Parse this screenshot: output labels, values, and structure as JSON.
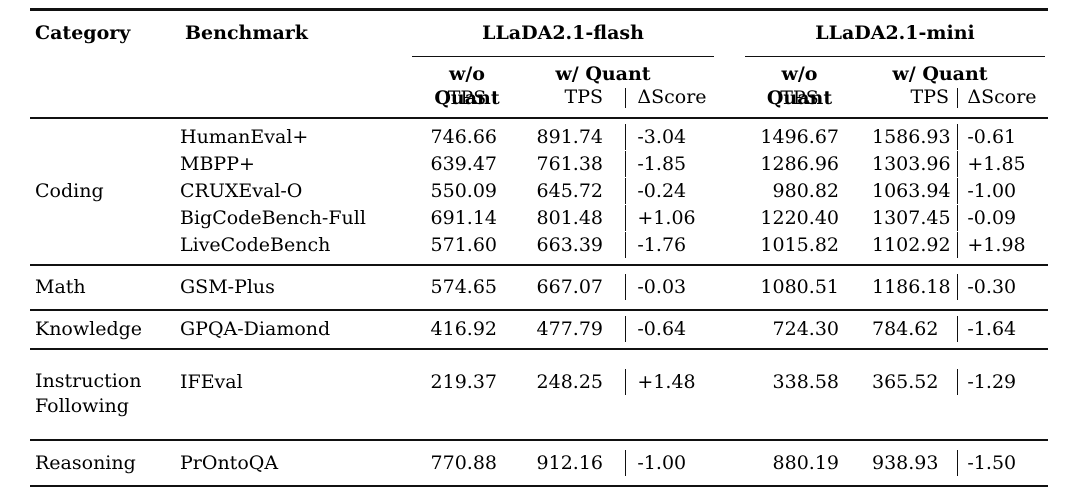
{
  "table": {
    "header": {
      "category": "Category",
      "benchmark": "Benchmark",
      "flash": "LLaDA2.1-flash",
      "mini": "LLaDA2.1-mini",
      "wo_quant": "w/o Quant",
      "w_quant": "w/ Quant",
      "tps": "TPS",
      "delta_score": "ΔScore"
    },
    "groups": [
      {
        "category": "Coding",
        "rows": [
          {
            "benchmark": "HumanEval+",
            "flash_wo_tps": "746.66",
            "flash_w_tps": "891.74",
            "flash_delta": "-3.04",
            "mini_wo_tps": "1496.67",
            "mini_w_tps": "1586.93",
            "mini_delta": "-0.61"
          },
          {
            "benchmark": "MBPP+",
            "flash_wo_tps": "639.47",
            "flash_w_tps": "761.38",
            "flash_delta": "-1.85",
            "mini_wo_tps": "1286.96",
            "mini_w_tps": "1303.96",
            "mini_delta": "+1.85"
          },
          {
            "benchmark": "CRUXEval-O",
            "flash_wo_tps": "550.09",
            "flash_w_tps": "645.72",
            "flash_delta": "-0.24",
            "mini_wo_tps": "980.82",
            "mini_w_tps": "1063.94",
            "mini_delta": "-1.00"
          },
          {
            "benchmark": "BigCodeBench-Full",
            "flash_wo_tps": "691.14",
            "flash_w_tps": "801.48",
            "flash_delta": "+1.06",
            "mini_wo_tps": "1220.40",
            "mini_w_tps": "1307.45",
            "mini_delta": "-0.09"
          },
          {
            "benchmark": "LiveCodeBench",
            "flash_wo_tps": "571.60",
            "flash_w_tps": "663.39",
            "flash_delta": "-1.76",
            "mini_wo_tps": "1015.82",
            "mini_w_tps": "1102.92",
            "mini_delta": "+1.98"
          }
        ]
      },
      {
        "category": "Math",
        "rows": [
          {
            "benchmark": "GSM-Plus",
            "flash_wo_tps": "574.65",
            "flash_w_tps": "667.07",
            "flash_delta": "-0.03",
            "mini_wo_tps": "1080.51",
            "mini_w_tps": "1186.18",
            "mini_delta": "-0.30"
          }
        ]
      },
      {
        "category": "Knowledge",
        "rows": [
          {
            "benchmark": "GPQA-Diamond",
            "flash_wo_tps": "416.92",
            "flash_w_tps": "477.79",
            "flash_delta": "-0.64",
            "mini_wo_tps": "724.30",
            "mini_w_tps": "784.62",
            "mini_delta": "-1.64"
          }
        ]
      },
      {
        "category": "Instruction Following",
        "rows": [
          {
            "benchmark": "IFEval",
            "flash_wo_tps": "219.37",
            "flash_w_tps": "248.25",
            "flash_delta": "+1.48",
            "mini_wo_tps": "338.58",
            "mini_w_tps": "365.52",
            "mini_delta": "-1.29"
          }
        ]
      },
      {
        "category": "Reasoning",
        "rows": [
          {
            "benchmark": "PrOntoQA",
            "flash_wo_tps": "770.88",
            "flash_w_tps": "912.16",
            "flash_delta": "-1.00",
            "mini_wo_tps": "880.19",
            "mini_w_tps": "938.93",
            "mini_delta": "-1.50"
          }
        ]
      }
    ]
  }
}
